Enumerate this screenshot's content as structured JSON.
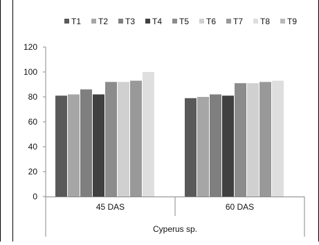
{
  "chart_data": {
    "type": "bar",
    "categories": [
      "45 DAS",
      "60 DAS"
    ],
    "group_label": "Cyperus sp.",
    "series": [
      {
        "name": "T1",
        "color": "#595959",
        "values": [
          81,
          79
        ]
      },
      {
        "name": "T2",
        "color": "#a6a6a6",
        "values": [
          82,
          80
        ]
      },
      {
        "name": "T3",
        "color": "#7f7f7f",
        "values": [
          86,
          82
        ]
      },
      {
        "name": "T4",
        "color": "#404040",
        "values": [
          82,
          81
        ]
      },
      {
        "name": "T5",
        "color": "#8c8c8c",
        "values": [
          92,
          91
        ]
      },
      {
        "name": "T6",
        "color": "#d0d0d0",
        "values": [
          92,
          91
        ]
      },
      {
        "name": "T7",
        "color": "#999999",
        "values": [
          93,
          92
        ]
      },
      {
        "name": "T8",
        "color": "#dedede",
        "values": [
          100,
          93
        ]
      },
      {
        "name": "T9",
        "color": "#b8b8b8",
        "values": [
          null,
          null
        ]
      }
    ],
    "yticks": [
      "0",
      "20",
      "40",
      "60",
      "80",
      "100",
      "120"
    ],
    "ylim": [
      0,
      120
    ],
    "grid": false,
    "legend_position": "top",
    "title": "",
    "xlabel": "",
    "ylabel": ""
  }
}
